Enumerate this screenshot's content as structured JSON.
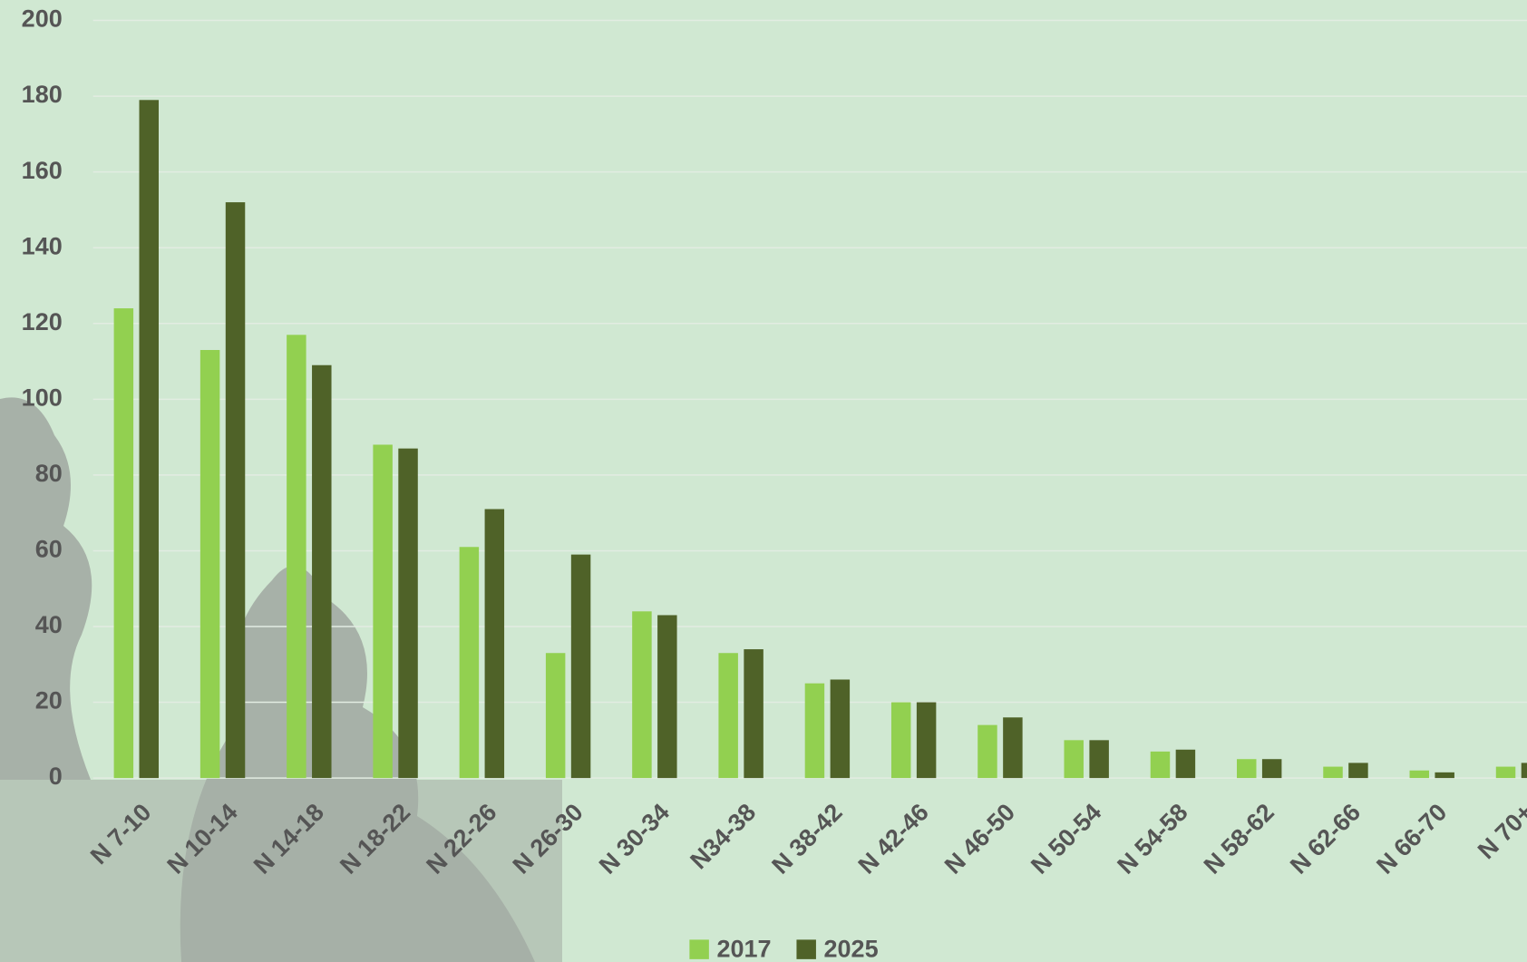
{
  "chart_data": {
    "type": "bar",
    "categories": [
      "N 7-10",
      "N 10-14",
      "N 14-18",
      "N 18-22",
      "N 22-26",
      "N 26-30",
      "N 30-34",
      "N34-38",
      "N 38-42",
      "N 42-46",
      "N 46-50",
      "N 50-54",
      "N 54-58",
      "N 58-62",
      "N 62-66",
      "N 66-70",
      "N 70+"
    ],
    "series": [
      {
        "name": "2017",
        "color": "#92d050",
        "values": [
          124,
          113,
          117,
          88,
          61,
          33,
          44,
          33,
          25,
          20,
          14,
          10,
          7,
          5,
          3,
          2,
          3
        ]
      },
      {
        "name": "2025",
        "color": "#4f6228",
        "values": [
          179,
          152,
          109,
          87,
          71,
          59,
          43,
          34,
          26,
          20,
          16,
          10,
          7.5,
          5,
          4,
          1.5,
          4
        ]
      }
    ],
    "ylim": [
      0,
      200
    ],
    "yticks": [
      0,
      20,
      40,
      60,
      80,
      100,
      120,
      140,
      160,
      180,
      200
    ],
    "grid": true,
    "legend": "bottom"
  }
}
